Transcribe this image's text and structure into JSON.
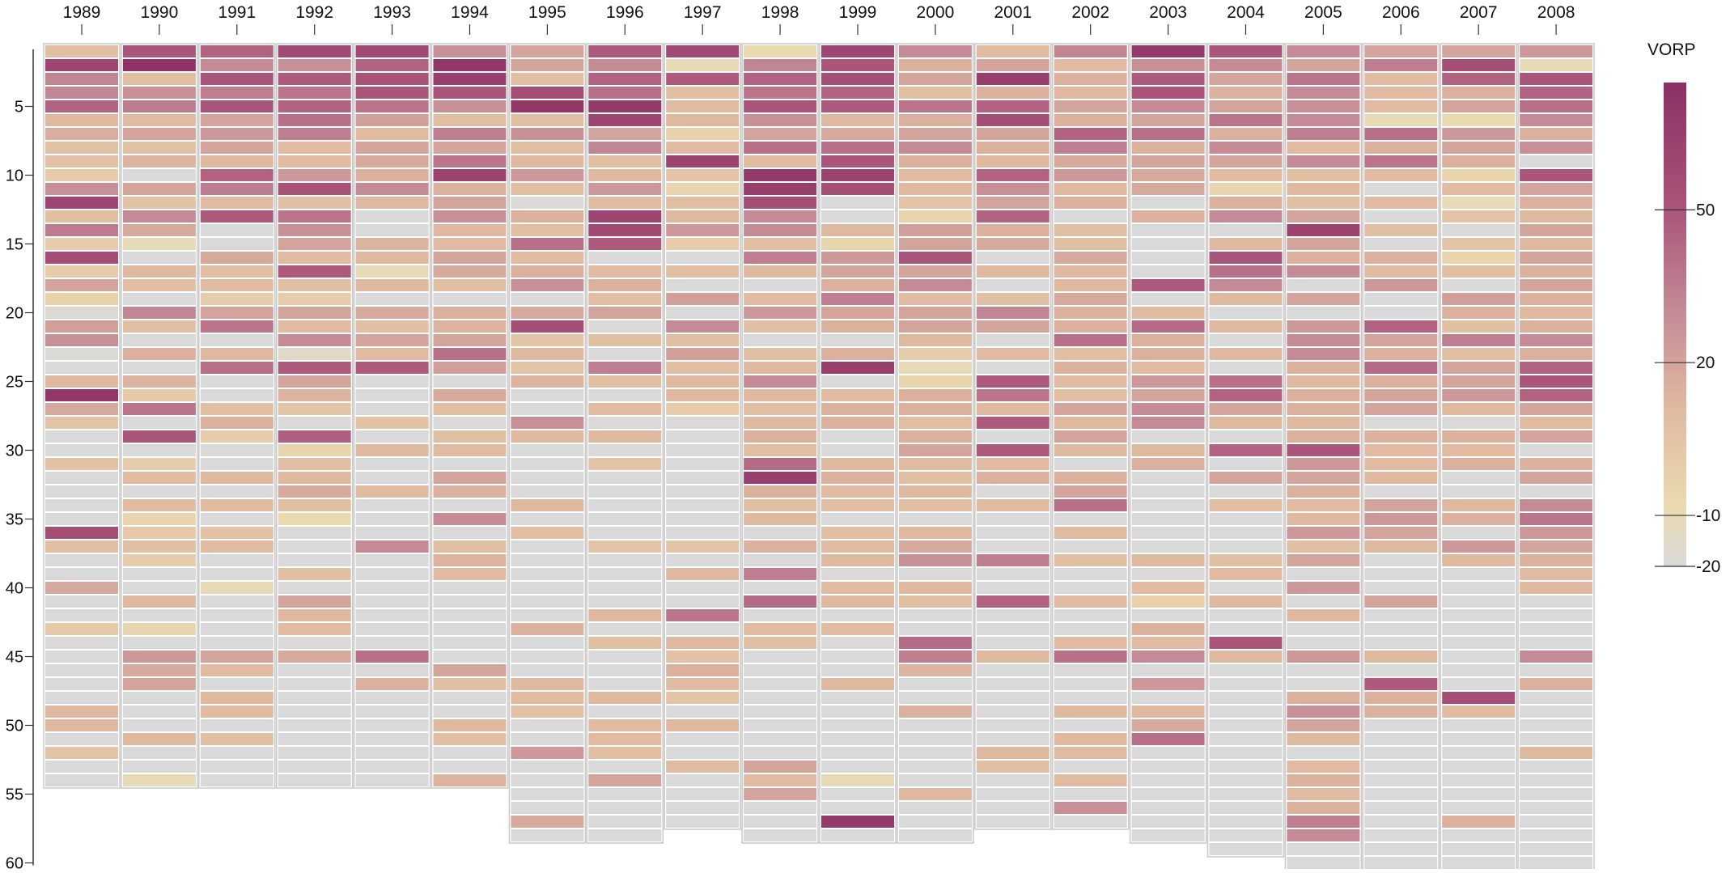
{
  "chart_data": {
    "type": "heatmap",
    "title": "",
    "xlabel": "",
    "ylabel": "",
    "categories": [
      "1989",
      "1990",
      "1991",
      "1992",
      "1993",
      "1994",
      "1995",
      "1996",
      "1997",
      "1998",
      "1999",
      "2000",
      "2001",
      "2002",
      "2003",
      "2004",
      "2005",
      "2006",
      "2007",
      "2008"
    ],
    "y_ticks": [
      5,
      10,
      15,
      20,
      25,
      30,
      35,
      40,
      45,
      50,
      55,
      60
    ],
    "ylim": [
      0,
      60
    ],
    "picks_per_year": [
      54,
      54,
      54,
      54,
      54,
      54,
      58,
      58,
      57,
      58,
      58,
      58,
      57,
      57,
      58,
      59,
      60,
      60,
      60,
      60
    ],
    "legend": {
      "title": "VORP",
      "ticks": [
        50,
        20,
        -10,
        -20
      ],
      "range": [
        -20,
        75
      ],
      "placement": "right"
    },
    "encoding_note": "Cells show VORP per draft pick; values estimated from color",
    "values": [
      [
        8,
        60,
        32,
        32,
        45,
        12,
        16,
        6,
        6,
        0,
        28,
        60,
        8,
        36,
        0,
        55,
        0,
        20,
        -3,
        -18,
        22,
        28,
        -19,
        -20,
        12,
        70,
        18,
        5,
        -20,
        -20,
        7,
        -20,
        -20,
        -20,
        -20,
        55,
        8,
        -20,
        -20,
        18,
        -20,
        -20,
        2,
        -20,
        -20,
        -20,
        -20,
        -20,
        12,
        12,
        -20,
        5,
        -20,
        -20
      ],
      [
        50,
        72,
        8,
        28,
        36,
        10,
        20,
        6,
        14,
        -20,
        20,
        6,
        30,
        18,
        -10,
        -20,
        12,
        8,
        -20,
        32,
        8,
        -20,
        15,
        -20,
        14,
        2,
        38,
        -20,
        50,
        -20,
        0,
        10,
        -20,
        10,
        -5,
        2,
        8,
        0,
        -20,
        -20,
        12,
        -20,
        -5,
        -20,
        25,
        18,
        20,
        -20,
        -20,
        -20,
        12,
        -20,
        -20,
        -10
      ],
      [
        45,
        30,
        50,
        35,
        50,
        20,
        25,
        20,
        12,
        45,
        36,
        10,
        48,
        -20,
        -20,
        18,
        8,
        10,
        0,
        20,
        38,
        -20,
        12,
        40,
        -20,
        -20,
        8,
        15,
        0,
        -20,
        -20,
        12,
        -20,
        10,
        -20,
        6,
        10,
        -20,
        -20,
        -10,
        -20,
        -20,
        -20,
        -20,
        20,
        10,
        -20,
        12,
        10,
        -20,
        8,
        -20,
        -20,
        -20
      ],
      [
        58,
        28,
        48,
        38,
        45,
        40,
        35,
        10,
        10,
        25,
        52,
        8,
        38,
        28,
        20,
        10,
        48,
        8,
        0,
        20,
        10,
        30,
        -15,
        48,
        20,
        14,
        5,
        -20,
        46,
        -5,
        8,
        12,
        18,
        8,
        -8,
        -20,
        -20,
        -20,
        8,
        -20,
        20,
        12,
        10,
        -20,
        18,
        -20,
        -20,
        -20,
        -20,
        -20,
        -20,
        -20,
        -20,
        -20
      ],
      [
        58,
        45,
        52,
        50,
        38,
        22,
        10,
        20,
        18,
        15,
        30,
        12,
        -20,
        -20,
        14,
        12,
        -10,
        12,
        -20,
        18,
        8,
        20,
        10,
        48,
        -20,
        -20,
        -20,
        6,
        -20,
        12,
        -20,
        -20,
        10,
        -20,
        -20,
        -20,
        30,
        -20,
        -20,
        -20,
        -20,
        -20,
        -20,
        -20,
        40,
        -20,
        15,
        -20,
        -20,
        -20,
        -20,
        -20,
        -20,
        -20
      ],
      [
        28,
        70,
        65,
        50,
        28,
        8,
        35,
        20,
        38,
        62,
        15,
        20,
        28,
        12,
        10,
        20,
        18,
        8,
        -20,
        15,
        14,
        20,
        40,
        22,
        -20,
        18,
        8,
        -20,
        8,
        10,
        -20,
        20,
        15,
        -20,
        30,
        -20,
        8,
        14,
        10,
        -20,
        -20,
        -20,
        -20,
        -20,
        -20,
        20,
        8,
        -20,
        -20,
        12,
        8,
        -20,
        -20,
        14
      ],
      [
        20,
        20,
        8,
        55,
        70,
        8,
        28,
        8,
        12,
        25,
        8,
        -20,
        15,
        8,
        40,
        10,
        15,
        28,
        -20,
        18,
        55,
        5,
        12,
        5,
        14,
        -20,
        -20,
        28,
        12,
        -20,
        -20,
        -20,
        -20,
        12,
        -20,
        8,
        -20,
        -20,
        -20,
        -20,
        -20,
        -20,
        15,
        -20,
        -20,
        -20,
        12,
        10,
        6,
        -20,
        -20,
        25,
        -20,
        -20,
        -20,
        -20,
        18,
        -20
      ],
      [
        48,
        30,
        45,
        40,
        68,
        60,
        20,
        32,
        8,
        12,
        25,
        10,
        60,
        58,
        48,
        -20,
        10,
        15,
        8,
        20,
        -20,
        8,
        -20,
        35,
        8,
        -20,
        10,
        -20,
        12,
        -20,
        5,
        -20,
        -20,
        -20,
        -20,
        -20,
        5,
        -20,
        -20,
        -20,
        -20,
        12,
        -20,
        8,
        -20,
        -20,
        -20,
        12,
        -20,
        10,
        10,
        8,
        -20,
        20,
        -20,
        -20,
        -20,
        -20
      ],
      [
        58,
        -10,
        48,
        8,
        10,
        12,
        -3,
        10,
        62,
        5,
        -5,
        8,
        12,
        25,
        0,
        -20,
        8,
        -20,
        22,
        -20,
        30,
        8,
        22,
        8,
        12,
        12,
        0,
        -20,
        -20,
        -20,
        -20,
        -20,
        -20,
        -20,
        -20,
        -20,
        5,
        -20,
        12,
        -20,
        -20,
        38,
        -20,
        12,
        6,
        15,
        10,
        5,
        -20,
        12,
        -20,
        -20,
        10,
        -20,
        -20,
        -20,
        -20
      ],
      [
        -8,
        32,
        45,
        38,
        50,
        28,
        20,
        40,
        10,
        68,
        65,
        55,
        30,
        30,
        8,
        35,
        12,
        -20,
        10,
        25,
        8,
        -20,
        8,
        12,
        30,
        12,
        8,
        12,
        15,
        8,
        42,
        65,
        15,
        8,
        12,
        -20,
        15,
        -20,
        35,
        -20,
        42,
        -20,
        10,
        8,
        -20,
        -20,
        -20,
        -20,
        -20,
        -20,
        -20,
        -20,
        20,
        10,
        20,
        -20,
        -20,
        -20
      ],
      [
        60,
        50,
        55,
        45,
        48,
        12,
        18,
        40,
        50,
        62,
        55,
        -20,
        -20,
        12,
        -5,
        25,
        20,
        15,
        35,
        20,
        15,
        -20,
        15,
        65,
        -20,
        10,
        15,
        15,
        -20,
        -20,
        12,
        15,
        10,
        8,
        -20,
        8,
        10,
        12,
        -20,
        10,
        12,
        -20,
        10,
        -20,
        -20,
        -20,
        12,
        -20,
        -20,
        -20,
        -20,
        -20,
        -20,
        -10,
        -20,
        -20,
        68,
        -20
      ],
      [
        30,
        15,
        20,
        8,
        38,
        15,
        20,
        30,
        15,
        10,
        12,
        5,
        -5,
        22,
        20,
        50,
        20,
        30,
        10,
        20,
        20,
        12,
        0,
        -10,
        -5,
        15,
        15,
        8,
        15,
        20,
        10,
        8,
        12,
        8,
        -20,
        12,
        18,
        28,
        -20,
        12,
        8,
        -20,
        -20,
        42,
        35,
        14,
        -20,
        -20,
        15,
        -20,
        -20,
        -20,
        -20,
        -20,
        12,
        -20,
        -20,
        -20
      ],
      [
        10,
        20,
        65,
        15,
        45,
        55,
        20,
        15,
        12,
        45,
        28,
        20,
        45,
        15,
        18,
        -20,
        12,
        -20,
        8,
        32,
        20,
        -20,
        10,
        -20,
        48,
        38,
        12,
        48,
        -20,
        48,
        10,
        15,
        -20,
        10,
        -20,
        -20,
        -20,
        35,
        -20,
        -20,
        45,
        -20,
        -20,
        -20,
        12,
        -20,
        -20,
        -20,
        -20,
        -20,
        -20,
        12,
        8,
        -20,
        -20,
        -20,
        -20
      ],
      [
        32,
        10,
        15,
        12,
        20,
        15,
        45,
        35,
        18,
        25,
        12,
        15,
        -20,
        8,
        8,
        18,
        12,
        12,
        18,
        15,
        15,
        40,
        8,
        15,
        10,
        8,
        20,
        12,
        20,
        12,
        -20,
        15,
        20,
        40,
        -20,
        10,
        -20,
        8,
        -20,
        -20,
        10,
        -20,
        -20,
        10,
        40,
        -20,
        -20,
        -20,
        12,
        -20,
        12,
        10,
        -20,
        10,
        -20,
        28,
        -20
      ],
      [
        68,
        28,
        48,
        50,
        30,
        20,
        40,
        15,
        20,
        18,
        18,
        -20,
        15,
        -20,
        -20,
        -20,
        -20,
        48,
        -20,
        10,
        42,
        15,
        15,
        10,
        25,
        20,
        30,
        30,
        -20,
        12,
        15,
        -20,
        -20,
        -20,
        -20,
        -20,
        -20,
        12,
        -20,
        10,
        -2,
        -20,
        15,
        10,
        30,
        -20,
        25,
        -20,
        12,
        18,
        40,
        -20,
        -20,
        -20,
        -20,
        -20,
        -20,
        -20
      ],
      [
        50,
        30,
        20,
        15,
        20,
        38,
        15,
        30,
        20,
        10,
        -5,
        15,
        30,
        -20,
        12,
        50,
        40,
        30,
        12,
        -20,
        12,
        -20,
        12,
        -20,
        40,
        45,
        20,
        12,
        -20,
        45,
        -20,
        20,
        -20,
        8,
        -20,
        -20,
        -20,
        8,
        10,
        -20,
        12,
        -20,
        -20,
        50,
        12,
        -20,
        -20,
        -20,
        -20,
        -20,
        -20,
        -20,
        -20,
        -20,
        -20,
        -20,
        -20,
        -20,
        -20
      ],
      [
        30,
        20,
        38,
        30,
        28,
        30,
        35,
        10,
        30,
        8,
        12,
        8,
        20,
        62,
        20,
        15,
        30,
        -20,
        20,
        -20,
        25,
        30,
        30,
        15,
        12,
        15,
        15,
        12,
        15,
        50,
        25,
        20,
        15,
        10,
        12,
        25,
        8,
        20,
        -20,
        25,
        -20,
        12,
        -20,
        -20,
        25,
        -20,
        -20,
        15,
        28,
        20,
        12,
        -20,
        10,
        15,
        10,
        15,
        35,
        30,
        -20,
        -20
      ],
      [
        20,
        35,
        10,
        10,
        10,
        -10,
        40,
        15,
        38,
        10,
        -20,
        10,
        -20,
        8,
        -20,
        15,
        10,
        25,
        -20,
        -20,
        45,
        20,
        15,
        42,
        15,
        20,
        20,
        -20,
        15,
        10,
        10,
        12,
        -20,
        20,
        25,
        20,
        12,
        -20,
        -20,
        -20,
        20,
        -20,
        -20,
        -20,
        12,
        -20,
        48,
        15,
        15,
        -20,
        -20,
        -20,
        -20,
        -20,
        -20,
        -20,
        -20,
        -20,
        -20,
        -20
      ],
      [
        20,
        55,
        45,
        15,
        20,
        -8,
        25,
        20,
        15,
        -5,
        10,
        -10,
        5,
        -20,
        5,
        -5,
        8,
        -20,
        22,
        15,
        8,
        35,
        8,
        20,
        20,
        25,
        12,
        -20,
        15,
        10,
        15,
        -20,
        -20,
        12,
        15,
        -20,
        25,
        12,
        -20,
        -20,
        -20,
        -20,
        -20,
        -20,
        -20,
        -20,
        -20,
        55,
        10,
        -20,
        -20,
        -20,
        -20,
        -20,
        -20,
        -20,
        15,
        -20,
        -20,
        -20
      ],
      [
        25,
        -10,
        50,
        45,
        40,
        30,
        15,
        28,
        -20,
        50,
        20,
        15,
        12,
        20,
        12,
        20,
        15,
        20,
        15,
        12,
        15,
        30,
        15,
        45,
        50,
        45,
        20,
        10,
        20,
        -20,
        15,
        20,
        -20,
        30,
        38,
        25,
        20,
        15,
        10,
        12,
        -20,
        -20,
        -20,
        -20,
        30,
        -20,
        15,
        -20,
        -20,
        -20,
        -20,
        12,
        -20,
        -20,
        -20,
        -20,
        -20,
        -20,
        -20,
        -20
      ]
    ]
  }
}
